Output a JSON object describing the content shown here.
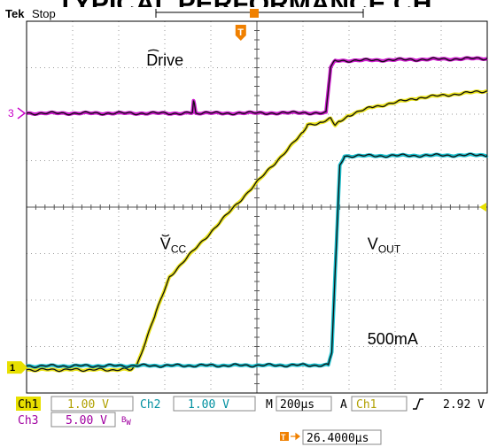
{
  "chart_data": {
    "type": "line",
    "title_cut": "TYPICAL PERFORMANCE CH",
    "header": {
      "brand": "Tek",
      "state": "Stop"
    },
    "x_unit": "µs",
    "xlim": [
      0,
      2000
    ],
    "ylim": [
      0,
      8
    ],
    "grid": true,
    "annotations": [
      {
        "id": "drive",
        "text": "Drive",
        "x": 520,
        "y": 7.05
      },
      {
        "id": "vcc",
        "main": "V",
        "sub": "CC",
        "x": 580,
        "y": 3.1
      },
      {
        "id": "vout",
        "main": "V",
        "sub": "OUT",
        "x": 1480,
        "y": 3.1
      },
      {
        "id": "load",
        "text": "500mA",
        "x": 1480,
        "y": 1.05
      }
    ],
    "series": [
      {
        "id": "ch1",
        "color": "#e8e000",
        "x": [
          0,
          450,
          480,
          560,
          620,
          1200,
          1220,
          1280,
          1320,
          1340,
          1360,
          1400,
          1500,
          1700,
          2000
        ],
        "y": [
          0.5,
          0.5,
          0.62,
          1.7,
          2.5,
          5.6,
          5.78,
          5.82,
          5.9,
          5.75,
          5.85,
          5.98,
          6.15,
          6.35,
          6.5
        ]
      },
      {
        "id": "ch2",
        "color": "#00b8c8",
        "x": [
          0,
          1310,
          1325,
          1360,
          1380,
          2000
        ],
        "y": [
          0.58,
          0.6,
          0.9,
          4.9,
          5.1,
          5.12
        ]
      },
      {
        "id": "ch3",
        "color": "#c800c8",
        "x": [
          0,
          720,
          725,
          735,
          1300,
          1320,
          1340,
          2000
        ],
        "y": [
          6.02,
          6.02,
          6.3,
          6.02,
          6.03,
          7.0,
          7.15,
          7.2
        ]
      }
    ],
    "markers": {
      "ch1": {
        "label": "1",
        "color": "#e8e000",
        "level": 0.55
      },
      "ch3": {
        "label": "3",
        "color": "#c800c8",
        "level": 6.02
      },
      "trigger_level": {
        "color": "#e8e000",
        "level": 4.0
      },
      "trigger_pos": {
        "label": "T",
        "color": "#f08000",
        "x": 930
      }
    },
    "readout": {
      "ch1_label": "Ch1",
      "ch1_scale": "1.00 V",
      "ch2_label": "Ch2",
      "ch2_scale": "1.00 V",
      "ch3_label": "Ch3",
      "ch3_scale": "5.00 V",
      "ch3_bw": "B",
      "ch3_bw_sub": "W",
      "time_label": "M",
      "time_scale": "200µs",
      "trig_mode": "A",
      "trig_source": "Ch1",
      "trig_slope": "⁄",
      "trig_level": "2.92 V",
      "delay_label": "T",
      "delay_value": "26.4000µs"
    },
    "colors": {
      "ch1": "#e8e000",
      "ch2": "#00b8c8",
      "ch3": "#c800c8",
      "trigger": "#f08000",
      "grid": "#9a9a9a"
    }
  }
}
